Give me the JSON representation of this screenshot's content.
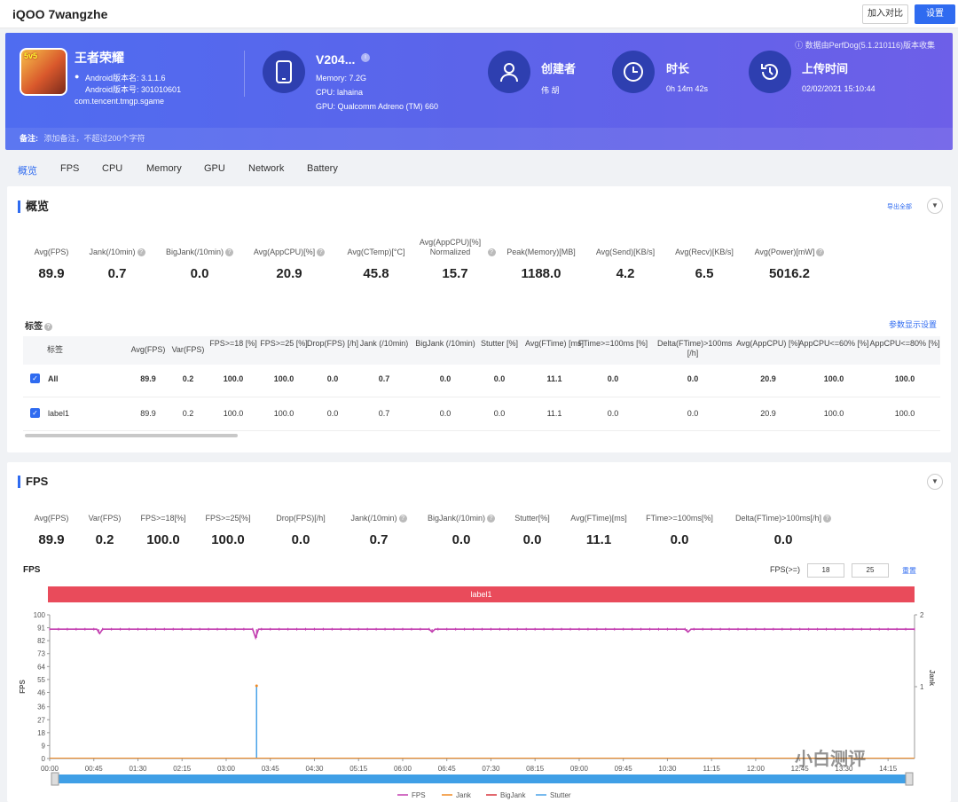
{
  "header": {
    "title": "iQOO 7wangzhe",
    "compare_label": "加入对比",
    "settings_label": "设置"
  },
  "app": {
    "name": "王者荣耀",
    "icon_badge": "5v5",
    "version": "Android版本名: 3.1.1.6",
    "build": "Android版本号: 301010601",
    "package": "com.tencent.tmgp.sgame"
  },
  "device": {
    "model": "V204...",
    "memory": "Memory: 7.2G",
    "cpu": "CPU: lahaina",
    "gpu": "GPU: Qualcomm Adreno (TM) 660"
  },
  "creator": {
    "label": "创建者",
    "value": "伟 胡"
  },
  "duration": {
    "label": "时长",
    "value": "0h 14m 42s"
  },
  "upload": {
    "label": "上传时间",
    "value": "02/02/2021 15:10:44"
  },
  "source_note": "ⓘ 数据由PerfDog(5.1.210116)版本收集",
  "remark": {
    "label": "备注:",
    "placeholder": "添加备注，不超过200个字符"
  },
  "tabs": [
    "概览",
    "FPS",
    "CPU",
    "Memory",
    "GPU",
    "Network",
    "Battery"
  ],
  "overview": {
    "title": "概览",
    "export_label": "导出全部",
    "metrics": [
      {
        "label": "Avg(FPS)",
        "value": "89.9"
      },
      {
        "label": "Jank(/10min)",
        "value": "0.7"
      },
      {
        "label": "BigJank(/10min)",
        "value": "0.0"
      },
      {
        "label": "Avg(AppCPU)[%]",
        "value": "20.9"
      },
      {
        "label": "Avg(CTemp)[°C]",
        "value": "45.8"
      },
      {
        "label": "Avg(AppCPU)[%] Normalized",
        "value": "15.7"
      },
      {
        "label": "Peak(Memory)[MB]",
        "value": "1188.0"
      },
      {
        "label": "Avg(Send)[KB/s]",
        "value": "4.2"
      },
      {
        "label": "Avg(Recv)[KB/s]",
        "value": "6.5"
      },
      {
        "label": "Avg(Power)[mW]",
        "value": "5016.2"
      }
    ],
    "tags_label": "标签",
    "param_settings_label": "参数显示设置",
    "table": {
      "headers": [
        "标签",
        "Avg(FPS)",
        "Var(FPS)",
        "FPS>=18 [%]",
        "FPS>=25 [%]",
        "Drop(FPS) [/h]",
        "Jank (/10min)",
        "BigJank (/10min)",
        "Stutter [%]",
        "Avg(FTime) [ms]",
        "FTime>=100ms [%]",
        "Delta(FTime)>100ms [/h]",
        "Avg(AppCPU) [%]",
        "AppCPU<=60% [%]",
        "AppCPU<=80% [%]"
      ],
      "rows": [
        [
          "All",
          "89.9",
          "0.2",
          "100.0",
          "100.0",
          "0.0",
          "0.7",
          "0.0",
          "0.0",
          "11.1",
          "0.0",
          "0.0",
          "20.9",
          "100.0",
          "100.0"
        ],
        [
          "label1",
          "89.9",
          "0.2",
          "100.0",
          "100.0",
          "0.0",
          "0.7",
          "0.0",
          "0.0",
          "11.1",
          "0.0",
          "0.0",
          "20.9",
          "100.0",
          "100.0"
        ]
      ]
    }
  },
  "fps_section": {
    "title": "FPS",
    "metrics": [
      {
        "label": "Avg(FPS)",
        "value": "89.9"
      },
      {
        "label": "Var(FPS)",
        "value": "0.2"
      },
      {
        "label": "FPS>=18[%]",
        "value": "100.0"
      },
      {
        "label": "FPS>=25[%]",
        "value": "100.0"
      },
      {
        "label": "Drop(FPS)[/h]",
        "value": "0.0"
      },
      {
        "label": "Jank(/10min)",
        "value": "0.7"
      },
      {
        "label": "BigJank(/10min)",
        "value": "0.0"
      },
      {
        "label": "Stutter[%]",
        "value": "0.0"
      },
      {
        "label": "Avg(FTime)[ms]",
        "value": "11.1"
      },
      {
        "label": "FTime>=100ms[%]",
        "value": "0.0"
      },
      {
        "label": "Delta(FTime)>100ms[/h]",
        "value": "0.0"
      }
    ],
    "chart_title": "FPS",
    "threshold_label": "FPS(>=)",
    "threshold_1": "18",
    "threshold_2": "25",
    "reset_label": "重置",
    "label_bar": "label1"
  },
  "chart_data": {
    "type": "line",
    "ylabel": "FPS",
    "y2label": "Jank",
    "yticks": [
      0,
      9,
      18,
      27,
      36,
      46,
      55,
      64,
      73,
      82,
      91,
      100
    ],
    "y2ticks": [
      1,
      2
    ],
    "ylim": [
      0,
      100
    ],
    "y2lim": [
      0,
      2
    ],
    "xticks": [
      "00:00",
      "00:45",
      "01:30",
      "02:15",
      "03:00",
      "03:45",
      "04:30",
      "05:15",
      "06:00",
      "06:45",
      "07:30",
      "08:15",
      "09:00",
      "09:45",
      "10:30",
      "11:15",
      "12:00",
      "12:45",
      "13:30",
      "14:15"
    ],
    "xlim_seconds": [
      0,
      882
    ],
    "series": [
      {
        "name": "FPS",
        "color": "#c23fb0",
        "baseline": 90,
        "dips": [
          {
            "t": 50,
            "v": 87
          },
          {
            "t": 211,
            "v": 84
          },
          {
            "t": 390,
            "v": 88
          },
          {
            "t": 650,
            "v": 88
          }
        ]
      },
      {
        "name": "Jank",
        "color": "#f08a24",
        "points": [
          {
            "t": 211,
            "v": 1
          }
        ]
      },
      {
        "name": "BigJank",
        "color": "#d9363e",
        "points": []
      },
      {
        "name": "Stutter",
        "color": "#4aa3e8",
        "points": [
          {
            "t": 211,
            "v": 50
          }
        ]
      }
    ],
    "legend": [
      "FPS",
      "Jank",
      "BigJank",
      "Stutter"
    ],
    "legend_position": "bottom",
    "grid": false
  },
  "watermark": "小白测评",
  "colors": {
    "accent": "#2f6bf0",
    "label_bar": "#e94b5b",
    "slider": "#3f9fe6"
  }
}
